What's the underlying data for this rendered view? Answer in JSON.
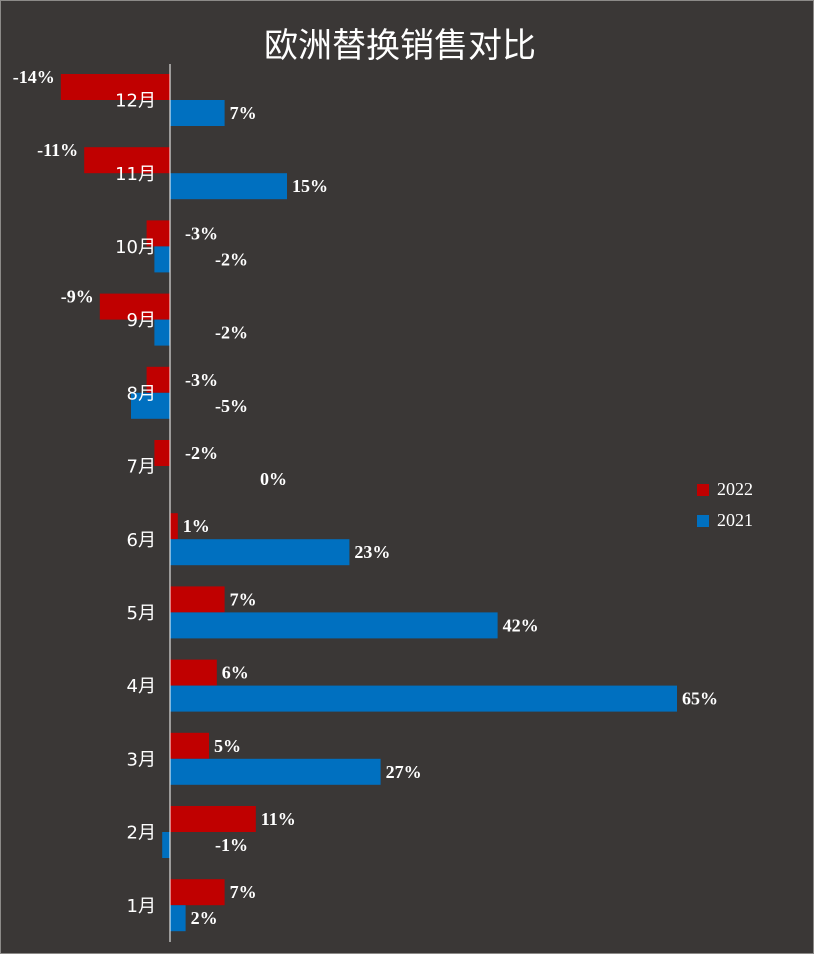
{
  "colors": {
    "background": "#3a3736",
    "series_2022": "#c00000",
    "series_2021": "#0070c0",
    "axis": "#ffffff",
    "text": "#ffffff"
  },
  "chart_data": {
    "type": "bar",
    "orientation": "horizontal",
    "title": "欧洲替换销售对比",
    "categories": [
      "12月",
      "11月",
      "10月",
      "9月",
      "8月",
      "7月",
      "6月",
      "5月",
      "4月",
      "3月",
      "2月",
      "1月"
    ],
    "series": [
      {
        "name": "2022",
        "values": [
          -14,
          -11,
          -3,
          -9,
          -3,
          -2,
          1,
          7,
          6,
          5,
          11,
          7
        ],
        "labels": [
          "-14%",
          "-11%",
          "-3%",
          "-9%",
          "-3%",
          "-2%",
          "1%",
          "7%",
          "6%",
          "5%",
          "11%",
          "7%"
        ]
      },
      {
        "name": "2021",
        "values": [
          7,
          15,
          -2,
          -2,
          -5,
          0,
          23,
          42,
          65,
          27,
          -1,
          2
        ],
        "labels": [
          "7%",
          "15%",
          "-2%",
          "-2%",
          "-5%",
          "0%",
          "23%",
          "42%",
          "65%",
          "27%",
          "-1%",
          "2%"
        ]
      }
    ],
    "value_unit": "%",
    "legend_position": "right",
    "grid": false
  }
}
